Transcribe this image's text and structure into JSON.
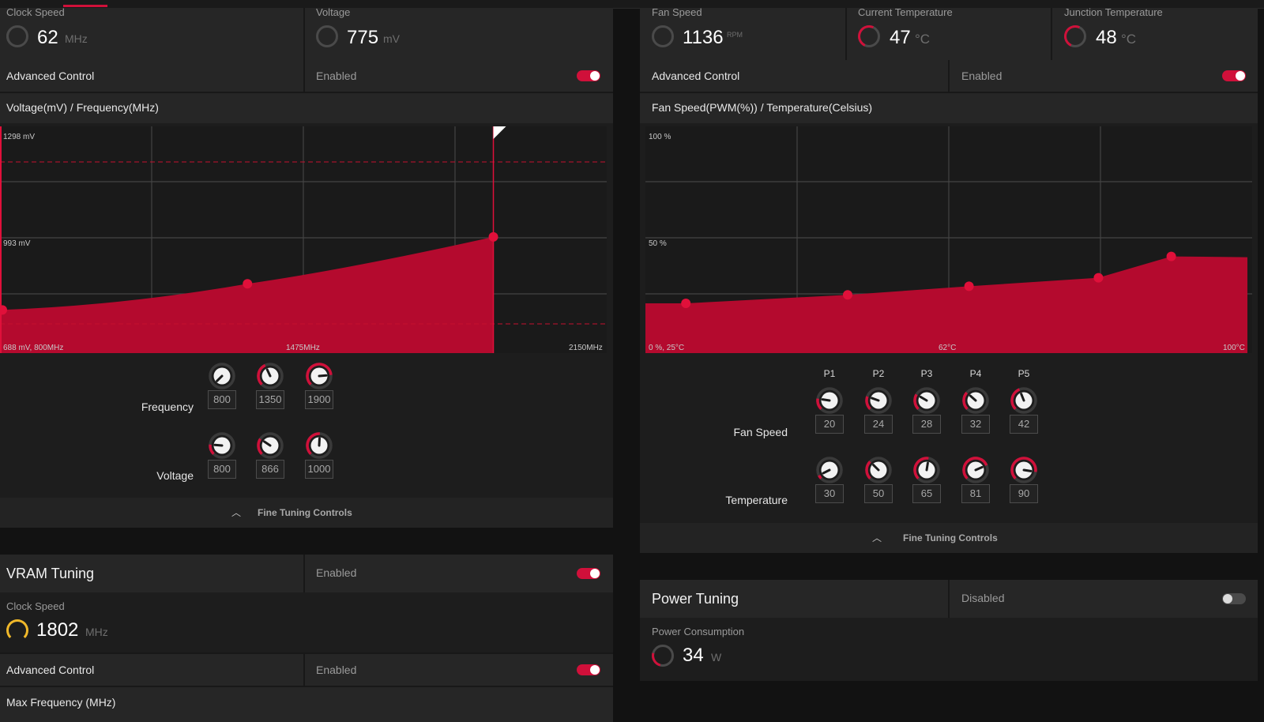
{
  "gpu": {
    "clock_speed": {
      "title": "Clock Speed",
      "value": "62",
      "unit": "MHz"
    },
    "voltage": {
      "title": "Voltage",
      "value": "775",
      "unit": "mV"
    },
    "advanced_control": {
      "label": "Advanced Control",
      "state": "Enabled",
      "enabled": true
    },
    "chart_title": "Voltage(mV) / Frequency(MHz)",
    "frequency_label": "Frequency",
    "voltage_label": "Voltage",
    "frequency_values": [
      "800",
      "1350",
      "1900"
    ],
    "voltage_values": [
      "800",
      "866",
      "1000"
    ],
    "fine_tuning": "Fine Tuning Controls"
  },
  "fan": {
    "fan_speed": {
      "title": "Fan Speed",
      "value": "1136",
      "unit": "RPM"
    },
    "current_temp": {
      "title": "Current Temperature",
      "value": "47",
      "unit": "°C"
    },
    "junction_temp": {
      "title": "Junction Temperature",
      "value": "48",
      "unit": "°C"
    },
    "advanced_control": {
      "label": "Advanced Control",
      "state": "Enabled",
      "enabled": true
    },
    "chart_title": "Fan Speed(PWM(%)) / Temperature(Celsius)",
    "points": [
      "P1",
      "P2",
      "P3",
      "P4",
      "P5"
    ],
    "fan_speed_label": "Fan Speed",
    "temperature_label": "Temperature",
    "fan_speed_values": [
      "20",
      "24",
      "28",
      "32",
      "42"
    ],
    "temperature_values": [
      "30",
      "50",
      "65",
      "81",
      "90"
    ],
    "fine_tuning": "Fine Tuning Controls"
  },
  "vram": {
    "title": "VRAM Tuning",
    "state": "Enabled",
    "enabled": true,
    "clock_speed": {
      "title": "Clock Speed",
      "value": "1802",
      "unit": "MHz"
    },
    "advanced_control": {
      "label": "Advanced Control",
      "state": "Enabled",
      "enabled": true
    },
    "max_frequency_label": "Max Frequency (MHz)"
  },
  "power": {
    "title": "Power Tuning",
    "state": "Disabled",
    "enabled": false,
    "consumption": {
      "title": "Power Consumption",
      "value": "34",
      "unit": "W"
    }
  },
  "colors": {
    "accent": "#d0103a",
    "gauge_track": "#4a4a4a",
    "vram_gauge": "#f0b82a"
  },
  "chart_data": [
    {
      "type": "area",
      "title": "Voltage(mV) / Frequency(MHz)",
      "x_tick_labels": [
        "688 mV, 800MHz",
        "1475MHz",
        "2150MHz"
      ],
      "y_tick_labels": [
        "1298 mV",
        "993 mV"
      ],
      "xlim": [
        800,
        2150
      ],
      "ylim": [
        688,
        1298
      ],
      "x": [
        800,
        1350,
        1900
      ],
      "y": [
        800,
        866,
        1000
      ],
      "grid": true
    },
    {
      "type": "area",
      "title": "Fan Speed(PWM(%)) / Temperature(Celsius)",
      "x_tick_labels": [
        "0 %, 25°C",
        "62°C",
        "100°C"
      ],
      "y_tick_labels": [
        "100 %",
        "50 %"
      ],
      "xlim": [
        25,
        100
      ],
      "ylim": [
        0,
        100
      ],
      "x": [
        30,
        50,
        65,
        81,
        90
      ],
      "y": [
        20,
        24,
        28,
        32,
        42
      ],
      "grid": true
    }
  ]
}
